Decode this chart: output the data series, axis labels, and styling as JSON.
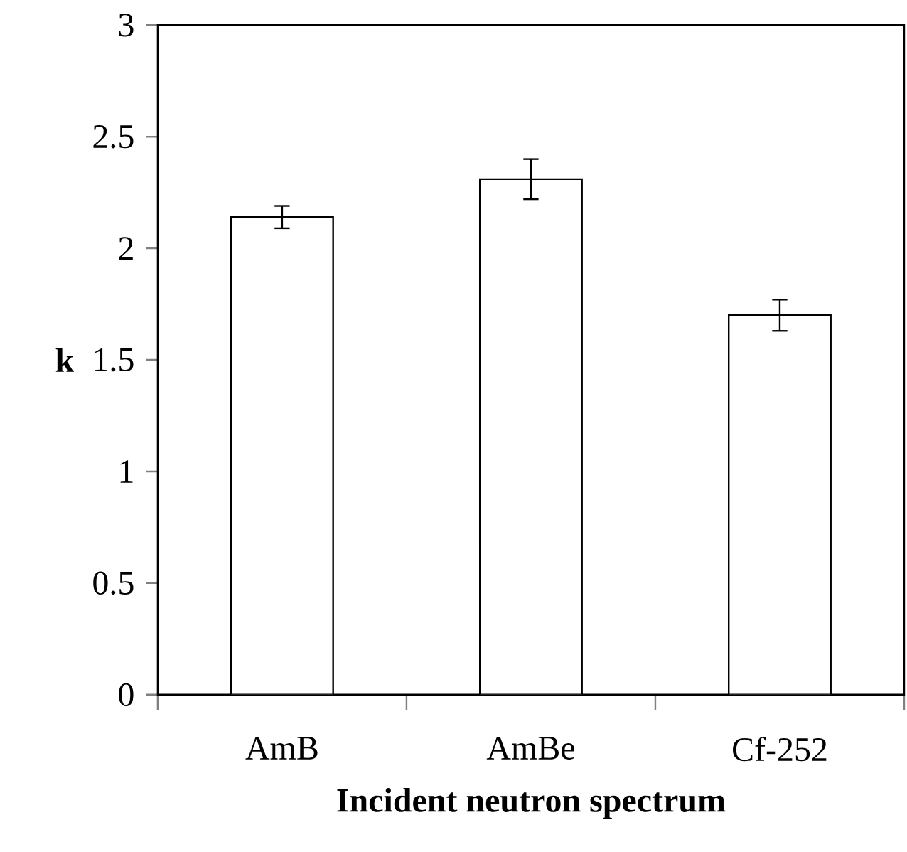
{
  "chart_data": {
    "type": "bar",
    "xlabel": "Incident neutron spectrum",
    "ylabel": "k",
    "categories": [
      "AmB",
      "AmBe",
      "Cf-252"
    ],
    "values": [
      2.14,
      2.31,
      1.7
    ],
    "errors": [
      0.05,
      0.09,
      0.07
    ],
    "color": "#ffffff",
    "ylim": [
      0,
      3
    ],
    "yticks": [
      0,
      0.5,
      1,
      1.5,
      2,
      2.5,
      3
    ]
  }
}
